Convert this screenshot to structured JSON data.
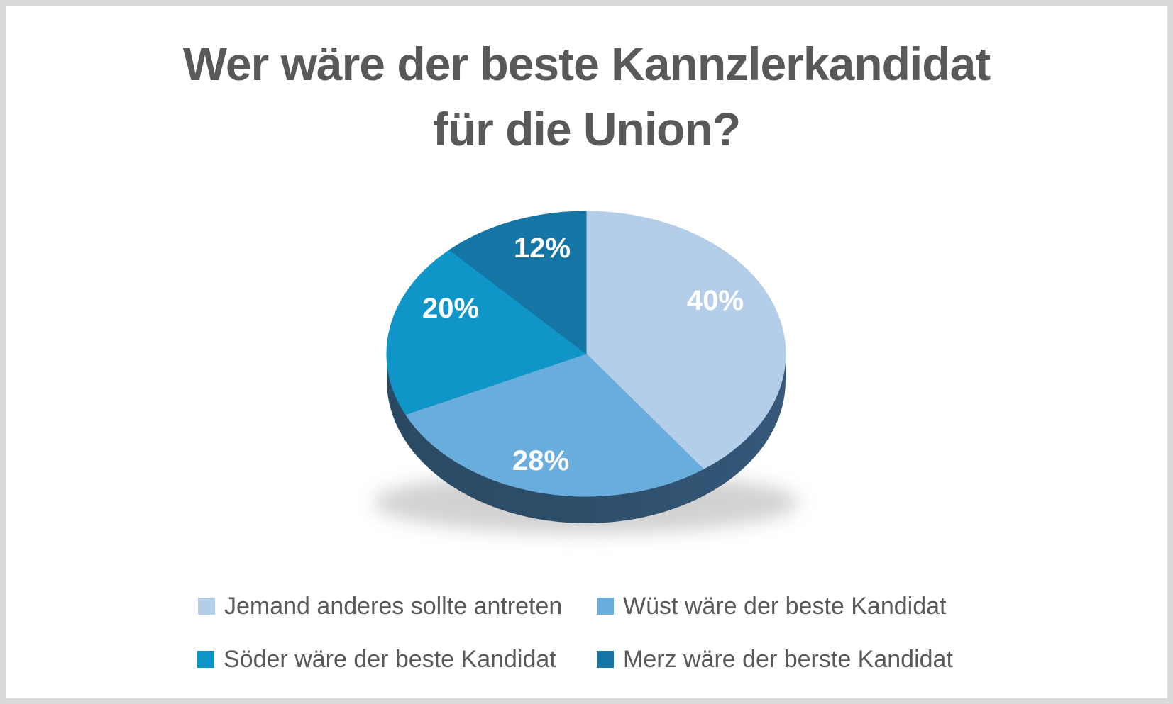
{
  "frame": {
    "border_color": "#DADADA",
    "background_color": "#FFFFFF"
  },
  "title": {
    "line1": "Wer wäre der beste Kannzlerkandidat",
    "line2": "für die Union?",
    "color": "#595959"
  },
  "chart_data": {
    "type": "pie",
    "style": "3d",
    "title": "Wer wäre der beste Kannzlerkandidat für die Union?",
    "categories": [
      "Jemand anderes sollte antreten",
      "Wüst wäre der beste Kandidat",
      "Söder wäre der beste Kandidat",
      "Merz wäre der berste Kandidat"
    ],
    "values": [
      40,
      28,
      20,
      12
    ],
    "value_labels": [
      "40%",
      "28%",
      "20%",
      "12%"
    ],
    "colors": [
      "#B4CDE8",
      "#69ADDC",
      "#1095C8",
      "#1576A6"
    ],
    "side_colors": [
      "#2A4A64",
      "#2D4E69",
      "#36587A"
    ],
    "value_label_color": "#FFFFFF",
    "start_angle_deg": 0,
    "direction": "clockwise",
    "legend_position": "bottom"
  },
  "legend": {
    "text_color": "#595959",
    "items": [
      {
        "label": "Jemand anderes sollte antreten",
        "color": "#B4CDE8"
      },
      {
        "label": "Wüst wäre der beste Kandidat",
        "color": "#69ADDC"
      },
      {
        "label": "Söder wäre der beste Kandidat",
        "color": "#1095C8"
      },
      {
        "label": "Merz wäre der berste Kandidat",
        "color": "#1576A6"
      }
    ]
  }
}
